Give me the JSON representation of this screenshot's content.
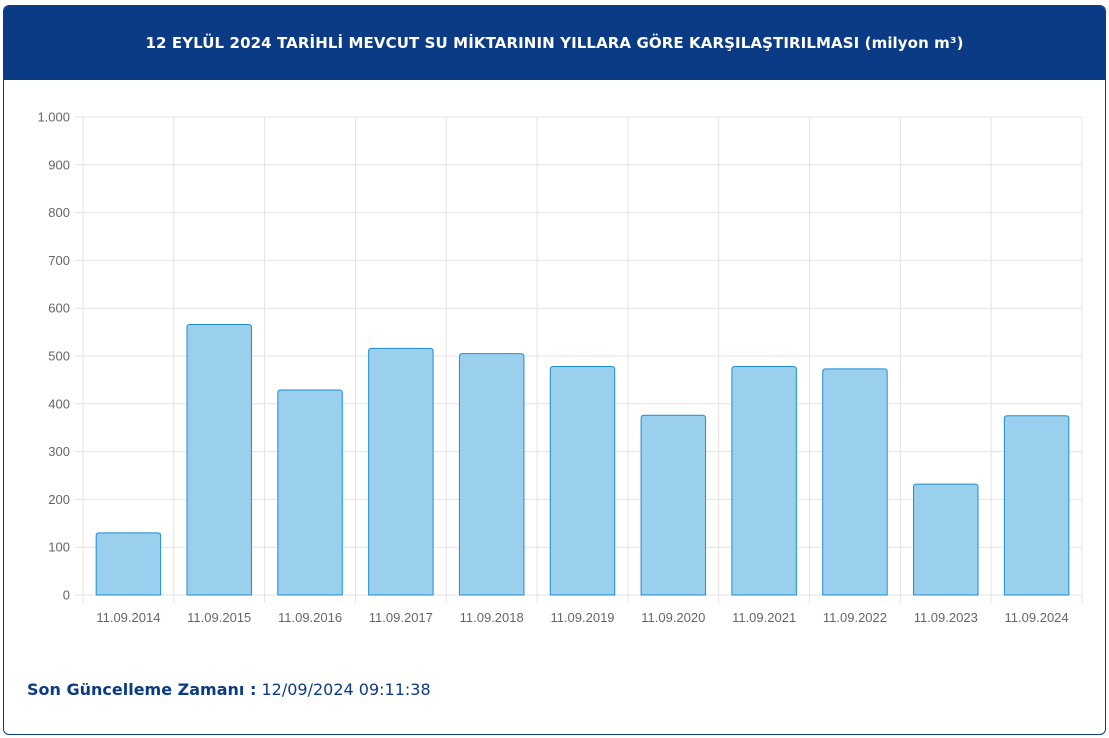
{
  "header": {
    "title": "12 EYLÜL 2024 TARİHLİ MEVCUT SU MİKTARININ YILLARA GÖRE KARŞILAŞTIRILMASI (milyon m³)"
  },
  "footer": {
    "label": "Son Güncelleme Zamanı :",
    "value": "12/09/2024 09:11:38"
  },
  "colors": {
    "header_bg": "#0c3b85",
    "bar_fill": "#9acfed",
    "bar_stroke": "#1f8ed0",
    "grid": "#e3e3e3",
    "tick_text": "#666666"
  },
  "chart_data": {
    "type": "bar",
    "categories": [
      "11.09.2014",
      "11.09.2015",
      "11.09.2016",
      "11.09.2017",
      "11.09.2018",
      "11.09.2019",
      "11.09.2020",
      "11.09.2021",
      "11.09.2022",
      "11.09.2023",
      "11.09.2024"
    ],
    "values": [
      130,
      566,
      429,
      516,
      505,
      478,
      376,
      478,
      473,
      232,
      375
    ],
    "ylim": [
      0,
      1000
    ],
    "y_ticks": [
      0,
      100,
      200,
      300,
      400,
      500,
      600,
      700,
      800,
      900,
      1000
    ],
    "y_tick_labels": [
      "0",
      "100",
      "200",
      "300",
      "400",
      "500",
      "600",
      "700",
      "800",
      "900",
      "1.000"
    ],
    "grid": true,
    "legend": "none"
  }
}
